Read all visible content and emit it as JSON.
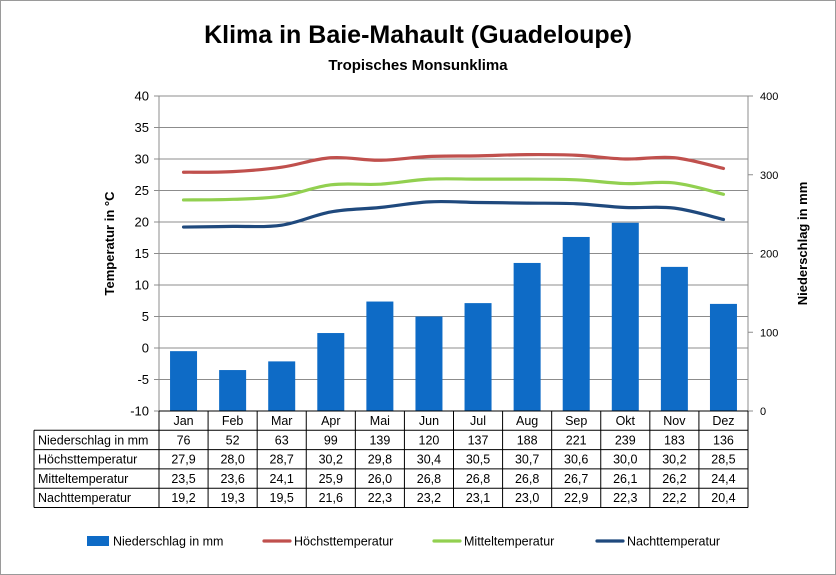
{
  "title": "Klima in Baie-Mahault (Guadeloupe)",
  "subtitle": "Tropisches Monsunklima",
  "colors": {
    "precip": "#0e6bc6",
    "max": "#c0504d",
    "mean": "#92d050",
    "night": "#1f497d",
    "grid": "#8c8c8c"
  },
  "chart_data": {
    "type": "bar",
    "title": "Klima in Baie-Mahault (Guadeloupe)",
    "subtitle": "Tropisches Monsunklima",
    "categories": [
      "Jan",
      "Feb",
      "Mar",
      "Apr",
      "Mai",
      "Jun",
      "Jul",
      "Aug",
      "Sep",
      "Okt",
      "Nov",
      "Dez"
    ],
    "ylabel_left": "Temperatur in °C",
    "ylabel_right": "Niederschlag in mm",
    "ylim_left": [
      -10,
      40
    ],
    "yticks_left": [
      "-10",
      "-5",
      "0",
      "5",
      "10",
      "15",
      "20",
      "25",
      "30",
      "35",
      "40"
    ],
    "ylim_right": [
      0,
      400
    ],
    "yticks_right": [
      "0",
      "100",
      "200",
      "300",
      "400"
    ],
    "grid": true,
    "legend_position": "bottom",
    "table": true,
    "series": [
      {
        "name": "Niederschlag in mm",
        "kind": "bar",
        "axis": "right",
        "color": "#0e6bc6",
        "values": [
          76,
          52,
          63,
          99,
          139,
          120,
          137,
          188,
          221,
          239,
          183,
          136
        ],
        "labels": [
          "76",
          "52",
          "63",
          "99",
          "139",
          "120",
          "137",
          "188",
          "221",
          "239",
          "183",
          "136"
        ]
      },
      {
        "name": "Höchsttemperatur",
        "kind": "line",
        "axis": "left",
        "color": "#c0504d",
        "values": [
          27.9,
          28.0,
          28.7,
          30.2,
          29.8,
          30.4,
          30.5,
          30.7,
          30.6,
          30.0,
          30.2,
          28.5
        ],
        "labels": [
          "27,9",
          "28,0",
          "28,7",
          "30,2",
          "29,8",
          "30,4",
          "30,5",
          "30,7",
          "30,6",
          "30,0",
          "30,2",
          "28,5"
        ]
      },
      {
        "name": "Mitteltemperatur",
        "kind": "line",
        "axis": "left",
        "color": "#92d050",
        "values": [
          23.5,
          23.6,
          24.1,
          25.9,
          26.0,
          26.8,
          26.8,
          26.8,
          26.7,
          26.1,
          26.2,
          24.4
        ],
        "labels": [
          "23,5",
          "23,6",
          "24,1",
          "25,9",
          "26,0",
          "26,8",
          "26,8",
          "26,8",
          "26,7",
          "26,1",
          "26,2",
          "24,4"
        ]
      },
      {
        "name": "Nachttemperatur",
        "kind": "line",
        "axis": "left",
        "color": "#1f497d",
        "values": [
          19.2,
          19.3,
          19.5,
          21.6,
          22.3,
          23.2,
          23.1,
          23.0,
          22.9,
          22.3,
          22.2,
          20.4
        ],
        "labels": [
          "19,2",
          "19,3",
          "19,5",
          "21,6",
          "22,3",
          "23,2",
          "23,1",
          "23,0",
          "22,9",
          "22,3",
          "22,2",
          "20,4"
        ]
      }
    ]
  }
}
